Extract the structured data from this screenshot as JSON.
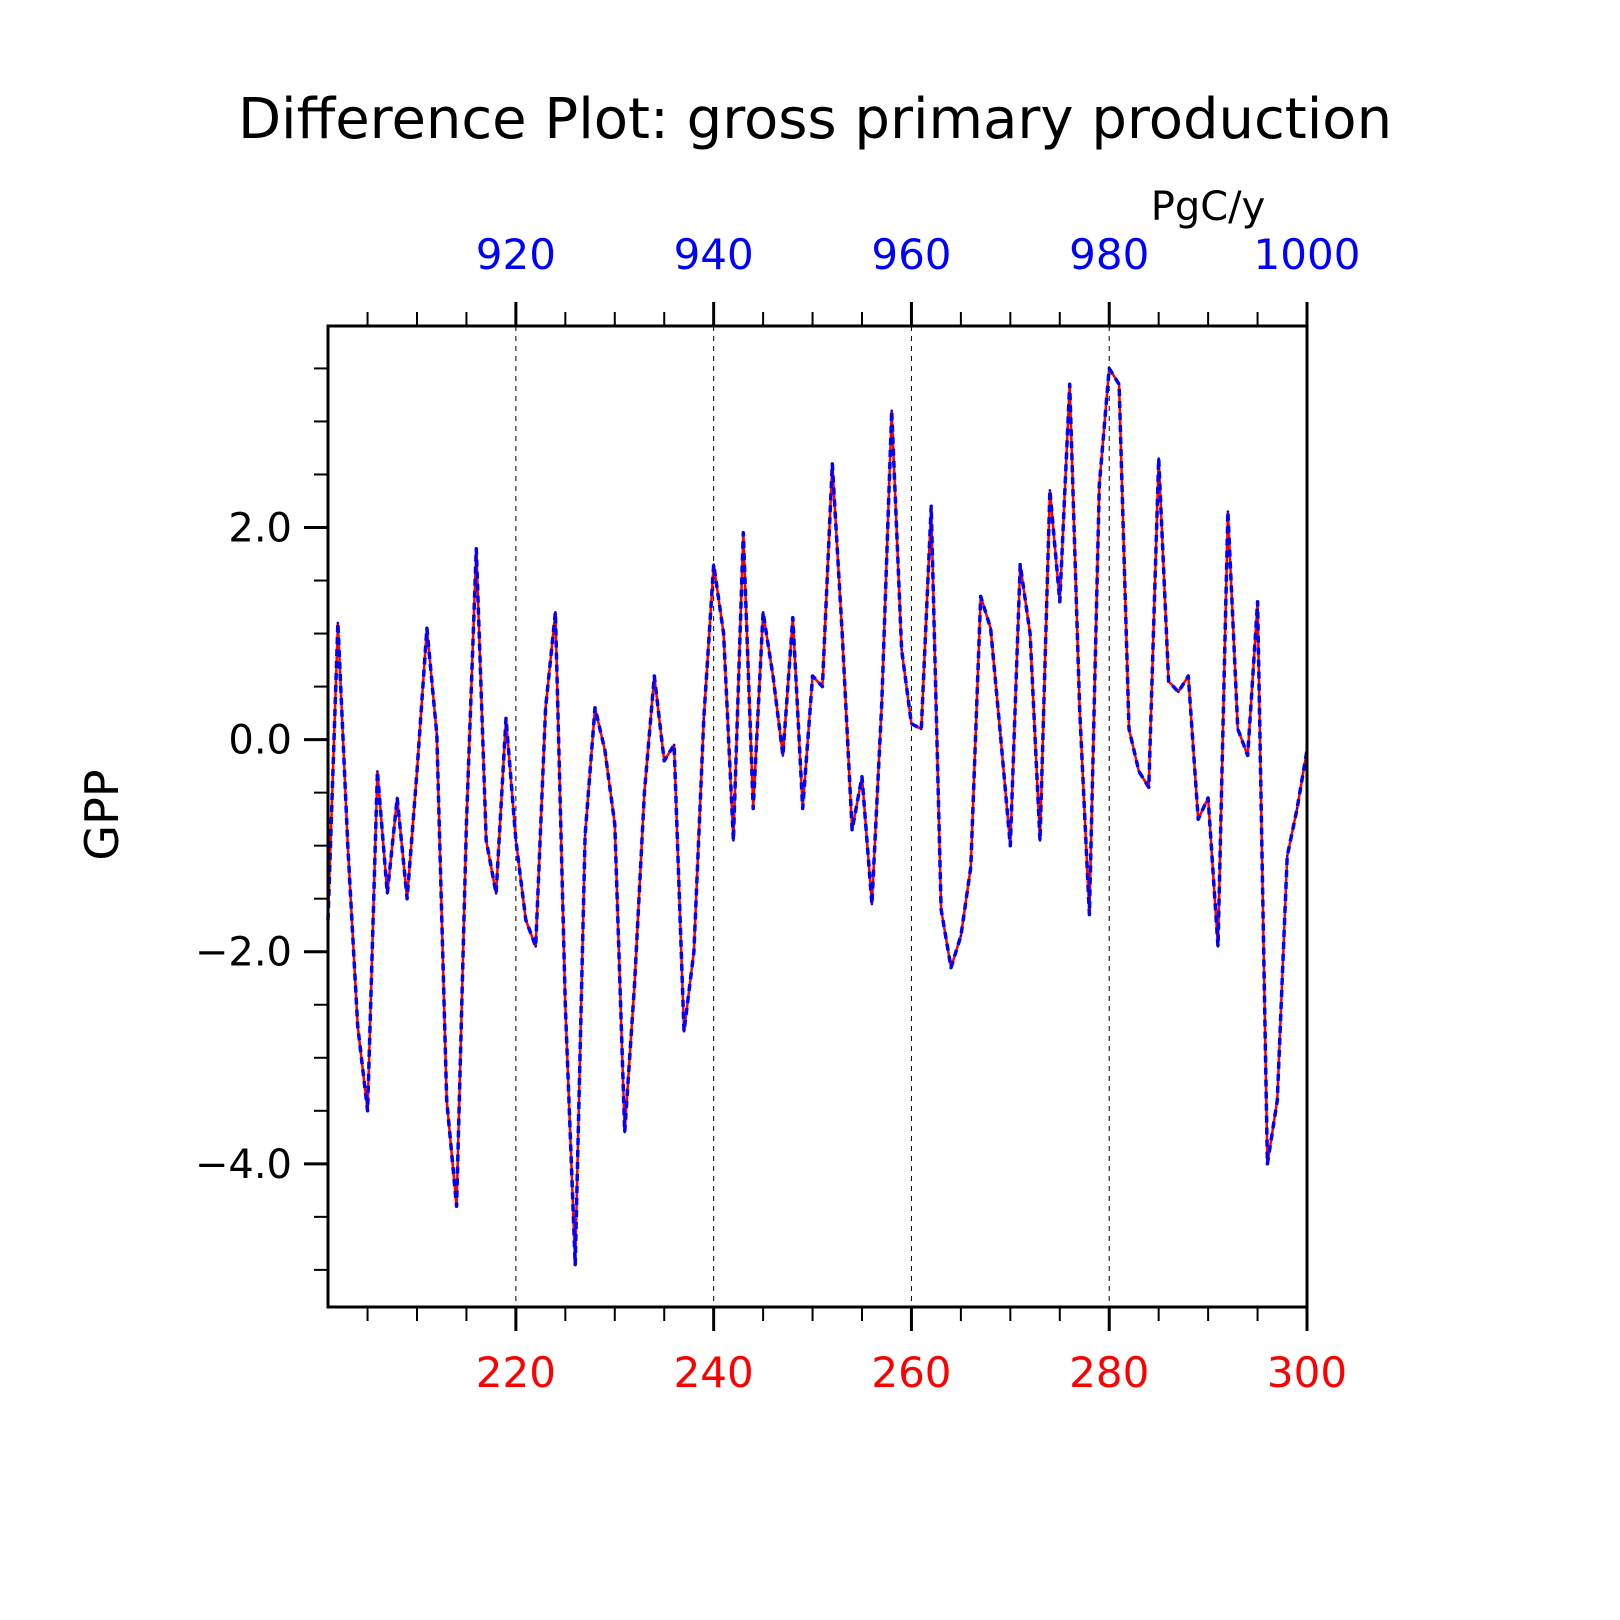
{
  "chart_data": {
    "type": "line",
    "title": "Difference Plot: gross primary production",
    "unit_label": "PgC/y",
    "ylabel": "GPP",
    "xlabel": "",
    "xlim": [
      201,
      300
    ],
    "ylim": [
      -5.35,
      3.9
    ],
    "grid": "vertical dashed lines at major top/bottom ticks",
    "x_bottom_ticks": [
      "220",
      "240",
      "260",
      "280",
      "300"
    ],
    "x_bottom_tick_values": [
      220,
      240,
      260,
      280,
      300
    ],
    "x_top_ticks": [
      "920",
      "940",
      "960",
      "980",
      "1000"
    ],
    "x_top_tick_values": [
      220,
      240,
      260,
      280,
      300
    ],
    "y_ticks": [
      "2.0",
      "0.0",
      "−2.0",
      "−4.0"
    ],
    "y_tick_values": [
      2.0,
      0.0,
      -2.0,
      -4.0
    ],
    "colors": {
      "bottom_axis": "#ff0000",
      "top_axis": "#0000ff",
      "series_1": "#ff0000",
      "series_2": "#0000ff"
    },
    "x": [
      201,
      202,
      203,
      204,
      205,
      206,
      207,
      208,
      209,
      210,
      211,
      212,
      213,
      214,
      215,
      216,
      217,
      218,
      219,
      220,
      221,
      222,
      223,
      224,
      225,
      226,
      227,
      228,
      229,
      230,
      231,
      232,
      233,
      234,
      235,
      236,
      237,
      238,
      239,
      240,
      241,
      242,
      243,
      244,
      245,
      246,
      247,
      248,
      249,
      250,
      251,
      252,
      253,
      254,
      255,
      256,
      257,
      258,
      259,
      260,
      261,
      262,
      263,
      264,
      265,
      266,
      267,
      268,
      269,
      270,
      271,
      272,
      273,
      274,
      275,
      276,
      277,
      278,
      279,
      280,
      281,
      282,
      283,
      284,
      285,
      286,
      287,
      288,
      289,
      290,
      291,
      292,
      293,
      294,
      295,
      296,
      297,
      298,
      299,
      300
    ],
    "series": [
      {
        "color": "#ff0000",
        "style": "solid",
        "values": [
          -1.7,
          1.1,
          -1.0,
          -2.7,
          -3.5,
          -0.3,
          -1.45,
          -0.55,
          -1.5,
          -0.3,
          1.05,
          0.05,
          -3.4,
          -4.4,
          -0.8,
          1.8,
          -0.95,
          -1.45,
          0.2,
          -0.95,
          -1.7,
          -1.95,
          0.3,
          1.2,
          -2.5,
          -4.95,
          -0.9,
          0.3,
          -0.1,
          -0.8,
          -3.7,
          -2.3,
          -0.5,
          0.6,
          -0.2,
          -0.05,
          -2.75,
          -2.0,
          0.2,
          1.65,
          1.0,
          -0.95,
          1.95,
          -0.65,
          1.2,
          0.6,
          -0.15,
          1.15,
          -0.65,
          0.6,
          0.5,
          2.6,
          1.0,
          -0.85,
          -0.35,
          -1.55,
          0.35,
          3.1,
          0.85,
          0.15,
          0.1,
          2.2,
          -1.6,
          -2.15,
          -1.85,
          -1.2,
          1.35,
          1.05,
          0.05,
          -1.0,
          1.65,
          1.0,
          -0.95,
          2.35,
          1.3,
          3.35,
          0.3,
          -1.65,
          2.4,
          3.5,
          3.35,
          0.1,
          -0.3,
          -0.45,
          2.65,
          0.55,
          0.45,
          0.6,
          -0.75,
          -0.55,
          -1.95,
          2.15,
          0.1,
          -0.15,
          1.3,
          -4.0,
          -3.4,
          -1.1,
          -0.65,
          -0.1
        ]
      },
      {
        "color": "#0000ff",
        "style": "dashed",
        "values": [
          -1.7,
          1.1,
          -1.0,
          -2.7,
          -3.5,
          -0.3,
          -1.45,
          -0.55,
          -1.5,
          -0.3,
          1.05,
          0.05,
          -3.4,
          -4.4,
          -0.8,
          1.8,
          -0.95,
          -1.45,
          0.2,
          -0.95,
          -1.7,
          -1.95,
          0.3,
          1.2,
          -2.5,
          -4.95,
          -0.9,
          0.3,
          -0.1,
          -0.8,
          -3.7,
          -2.3,
          -0.5,
          0.6,
          -0.2,
          -0.05,
          -2.75,
          -2.0,
          0.2,
          1.65,
          1.0,
          -0.95,
          1.95,
          -0.65,
          1.2,
          0.6,
          -0.15,
          1.15,
          -0.65,
          0.6,
          0.5,
          2.6,
          1.0,
          -0.85,
          -0.35,
          -1.55,
          0.35,
          3.1,
          0.85,
          0.15,
          0.1,
          2.2,
          -1.6,
          -2.15,
          -1.85,
          -1.2,
          1.35,
          1.05,
          0.05,
          -1.0,
          1.65,
          1.0,
          -0.95,
          2.35,
          1.3,
          3.35,
          0.3,
          -1.65,
          2.4,
          3.5,
          3.35,
          0.1,
          -0.3,
          -0.45,
          2.65,
          0.55,
          0.45,
          0.6,
          -0.75,
          -0.55,
          -1.95,
          2.15,
          0.1,
          -0.15,
          1.3,
          -4.0,
          -3.4,
          -1.1,
          -0.65,
          -0.1
        ]
      }
    ]
  }
}
